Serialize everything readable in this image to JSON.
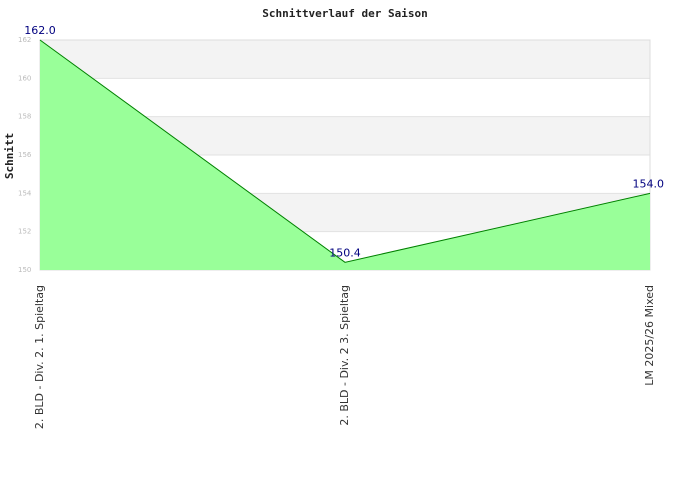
{
  "chart_data": {
    "type": "area",
    "title": "Schnittverlauf der Saison",
    "y_label": "Schnitt",
    "categories": [
      "2. BLD - Div. 2. 1. Spieltag",
      "2. BLD - Div. 2 3. Spieltag",
      "LM 2025/26 Mixed"
    ],
    "series": [
      {
        "name": "Schnitt",
        "color": "#008000",
        "fill": "#99ff99",
        "values": [
          162.0,
          150.4,
          154.0
        ],
        "value_labels": [
          "162.0",
          "150.4",
          "154.0"
        ]
      }
    ],
    "ylim": [
      150,
      162
    ],
    "yticks": [
      150,
      152,
      154,
      156,
      158,
      160,
      162
    ],
    "grid": true
  }
}
